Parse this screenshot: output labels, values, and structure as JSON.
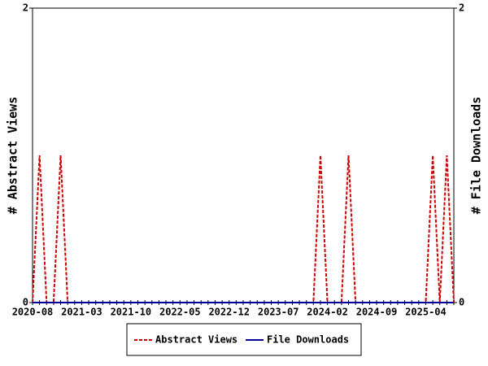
{
  "chart_data": {
    "type": "line",
    "categories": [
      "2020-08",
      null,
      null,
      null,
      null,
      null,
      null,
      "2021-03",
      null,
      null,
      null,
      null,
      null,
      null,
      "2021-10",
      null,
      null,
      null,
      null,
      null,
      null,
      "2022-05",
      null,
      null,
      null,
      null,
      null,
      null,
      "2022-12",
      null,
      null,
      null,
      null,
      null,
      null,
      "2023-07",
      null,
      null,
      null,
      null,
      null,
      null,
      "2024-02",
      null,
      null,
      null,
      null,
      null,
      null,
      "2024-09",
      null,
      null,
      null,
      null,
      null,
      null,
      "2025-04",
      null,
      null,
      null,
      null
    ],
    "series": [
      {
        "name": "Abstract Views",
        "color": "#cc0000",
        "dashed": true,
        "values": [
          0,
          1,
          0,
          0,
          1,
          0,
          0,
          0,
          0,
          0,
          0,
          0,
          0,
          0,
          0,
          0,
          0,
          0,
          0,
          0,
          0,
          0,
          0,
          0,
          0,
          0,
          0,
          0,
          0,
          0,
          0,
          0,
          0,
          0,
          0,
          0,
          0,
          0,
          0,
          0,
          0,
          1,
          0,
          0,
          0,
          1,
          0,
          0,
          0,
          0,
          0,
          0,
          0,
          0,
          0,
          0,
          0,
          1,
          0,
          1,
          0
        ]
      },
      {
        "name": "File Downloads",
        "color": "#000099",
        "axis": "y2",
        "values": [
          0,
          0,
          0,
          0,
          0,
          0,
          0,
          0,
          0,
          0,
          0,
          0,
          0,
          0,
          0,
          0,
          0,
          0,
          0,
          0,
          0,
          0,
          0,
          0,
          0,
          0,
          0,
          0,
          0,
          0,
          0,
          0,
          0,
          0,
          0,
          0,
          0,
          0,
          0,
          0,
          0,
          0,
          0,
          0,
          0,
          0,
          0,
          0,
          0,
          0,
          0,
          0,
          0,
          0,
          0,
          0,
          0,
          0,
          0,
          0,
          0
        ]
      }
    ],
    "ylabel": "# Abstract Views",
    "y2label": "# File Downloads",
    "ylim": [
      0,
      2
    ],
    "yticks": [
      0,
      2
    ],
    "y2lim": [
      0,
      2
    ],
    "y2ticks": [
      0,
      2
    ],
    "legend": "bottom"
  }
}
